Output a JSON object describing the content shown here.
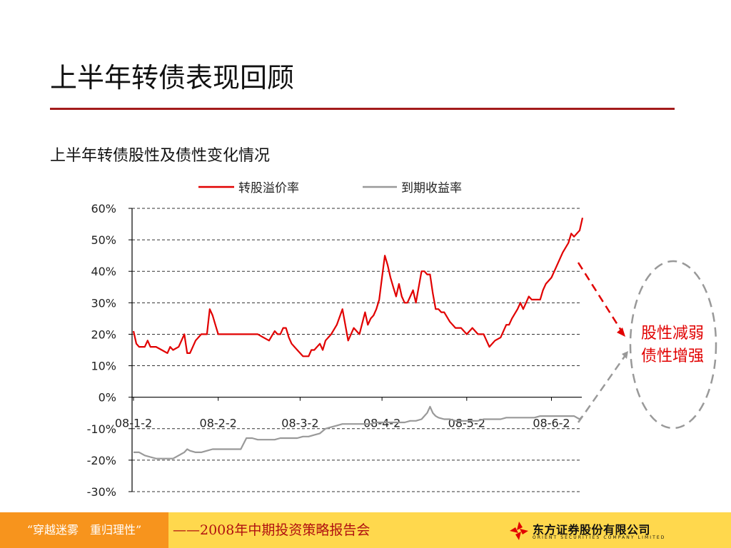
{
  "slide": {
    "title": "上半年转债表现回顾",
    "subtitle": "上半年转债股性及债性变化情况"
  },
  "annotation": {
    "line1": "股性减弱",
    "line2": "债性增强",
    "color": "#e10000"
  },
  "footer": {
    "left_text": "“穿越迷雾　重归理性”",
    "slogan": "——2008年中期投资策略报告会",
    "logo_name": "东方证券股份有限公司",
    "logo_en": "ORIENT SECURITIES COMPANY LIMITED"
  },
  "colors": {
    "title_rule": "#a31b1b",
    "footer_bg": "#ffd84d",
    "footer_left_bg": "#f7941d",
    "premium_series": "#e10000",
    "ytm_series": "#999999"
  },
  "chart_data": {
    "type": "line",
    "ylim": [
      -30,
      60
    ],
    "yticks": [
      "60%",
      "50%",
      "40%",
      "30%",
      "20%",
      "10%",
      "0%",
      "-10%",
      "-20%",
      "-30%"
    ],
    "ytick_values": [
      60,
      50,
      40,
      30,
      20,
      10,
      0,
      -10,
      -20,
      -30
    ],
    "xlim": [
      0,
      159
    ],
    "xticks": [
      "08-1-2",
      "08-2-2",
      "08-3-2",
      "08-4-2",
      "08-5-2",
      "08-6-2"
    ],
    "xtick_values": [
      0,
      30,
      59,
      88,
      118,
      148
    ],
    "grid": true,
    "legend_position": "top",
    "series": [
      {
        "name": "转股溢价率",
        "color": "#e10000",
        "x": [
          0,
          1,
          2,
          4,
          5,
          6,
          8,
          10,
          12,
          13,
          14,
          16,
          18,
          19,
          20,
          21,
          22,
          24,
          26,
          27,
          28,
          29,
          30,
          32,
          34,
          36,
          38,
          40,
          42,
          44,
          46,
          48,
          50,
          51,
          52,
          53,
          54,
          55,
          56,
          58,
          59,
          60,
          62,
          63,
          64,
          66,
          67,
          68,
          70,
          72,
          74,
          75,
          76,
          78,
          79,
          80,
          82,
          83,
          84,
          85,
          86,
          87,
          88,
          89,
          90,
          91,
          92,
          93,
          94,
          95,
          96,
          97,
          98,
          99,
          100,
          102,
          103,
          104,
          105,
          106,
          107,
          108,
          109,
          110,
          112,
          114,
          116,
          118,
          120,
          122,
          124,
          126,
          128,
          130,
          132,
          133,
          134,
          136,
          137,
          138,
          139,
          140,
          141,
          142,
          143,
          144,
          145,
          146,
          148,
          150,
          152,
          154,
          155,
          156,
          158,
          159
        ],
        "y": [
          21,
          17,
          16,
          16,
          18,
          16,
          16,
          15,
          14,
          16,
          15,
          16,
          20,
          14,
          14,
          16,
          18,
          20,
          20,
          28,
          26,
          23,
          20,
          20,
          20,
          20,
          20,
          20,
          20,
          20,
          19,
          18,
          21,
          20,
          20,
          22,
          22,
          19,
          17,
          15,
          14,
          13,
          13,
          15,
          15,
          17,
          15,
          18,
          20,
          23,
          28,
          23,
          18,
          22,
          21,
          20,
          27,
          23,
          25,
          26,
          28,
          31,
          38,
          45,
          42,
          38,
          35,
          32,
          36,
          32,
          30,
          30,
          32,
          34,
          30,
          40,
          40,
          39,
          39,
          33,
          28,
          28,
          27,
          27,
          24,
          22,
          22,
          20,
          22,
          20,
          20,
          16,
          18,
          19,
          23,
          23,
          25,
          28,
          30,
          28,
          30,
          32,
          31,
          31,
          31,
          31,
          34,
          36,
          38,
          42,
          46,
          49,
          52,
          51,
          53,
          57
        ]
      },
      {
        "name": "到期收益率",
        "color": "#999999",
        "x": [
          0,
          2,
          4,
          6,
          8,
          10,
          12,
          14,
          16,
          18,
          19,
          20,
          22,
          24,
          26,
          28,
          30,
          32,
          34,
          36,
          38,
          40,
          42,
          44,
          46,
          48,
          50,
          52,
          54,
          56,
          58,
          60,
          62,
          64,
          66,
          68,
          70,
          72,
          74,
          76,
          78,
          80,
          82,
          84,
          86,
          88,
          90,
          92,
          94,
          96,
          98,
          100,
          102,
          104,
          105,
          106,
          107,
          108,
          110,
          112,
          114,
          116,
          118,
          120,
          122,
          124,
          126,
          128,
          130,
          132,
          134,
          136,
          138,
          140,
          142,
          144,
          146,
          148,
          150,
          152,
          154,
          156,
          158,
          159
        ],
        "y": [
          -17.5,
          -17.5,
          -18.5,
          -19,
          -19.5,
          -19.5,
          -19.5,
          -19.5,
          -18.5,
          -17.5,
          -16.5,
          -17,
          -17.5,
          -17.5,
          -17,
          -16.5,
          -16.5,
          -16.5,
          -16.5,
          -16.5,
          -16.5,
          -13,
          -13,
          -13.5,
          -13.5,
          -13.5,
          -13.5,
          -13,
          -13,
          -13,
          -13,
          -12.5,
          -12.5,
          -12,
          -11.5,
          -10,
          -9.5,
          -9,
          -8.5,
          -8.5,
          -8.5,
          -8.5,
          -8.5,
          -8.5,
          -8,
          -8,
          -8,
          -8,
          -8,
          -8,
          -7.5,
          -7.5,
          -7,
          -5,
          -3,
          -5,
          -6,
          -6.5,
          -7,
          -7,
          -7.5,
          -7.5,
          -7.5,
          -7.5,
          -7.5,
          -7,
          -7,
          -7,
          -7,
          -6.5,
          -6.5,
          -6.5,
          -6.5,
          -6.5,
          -6.5,
          -6,
          -6,
          -6,
          -6,
          -6,
          -6,
          -6,
          -7,
          -6
        ]
      }
    ]
  }
}
